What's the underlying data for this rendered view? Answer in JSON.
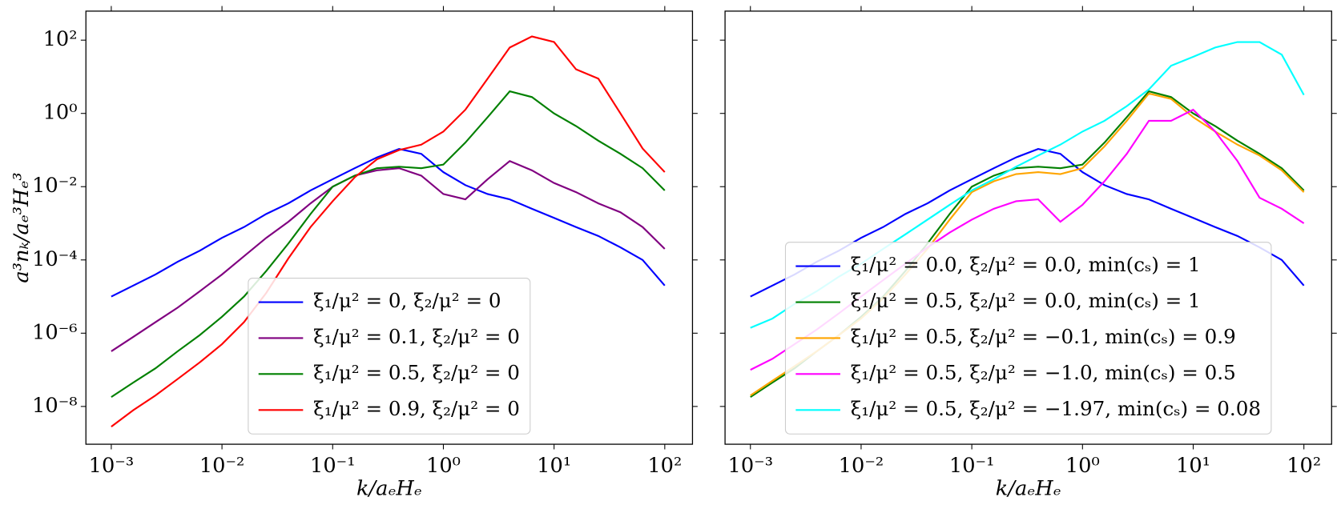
{
  "chart_data": [
    {
      "type": "line",
      "xscale": "log",
      "yscale": "log",
      "xlabel": "k/aₑHₑ",
      "ylabel": "a³nₖ/aₑ³Hₑ³",
      "legend": "lower center",
      "xlim": [
        0.00059,
        178
      ],
      "ylim": [
        9.3e-10,
        620
      ],
      "xticks": [
        {
          "value": 0.001,
          "label": "10⁻³"
        },
        {
          "value": 0.01,
          "label": "10⁻²"
        },
        {
          "value": 0.1,
          "label": "10⁻¹"
        },
        {
          "value": 1,
          "label": "10⁰"
        },
        {
          "value": 10,
          "label": "10¹"
        },
        {
          "value": 100,
          "label": "10²"
        }
      ],
      "yticks": [
        {
          "value": 1e-08,
          "label": "10⁻⁸"
        },
        {
          "value": 1e-06,
          "label": "10⁻⁶"
        },
        {
          "value": 0.0001,
          "label": "10⁻⁴"
        },
        {
          "value": 0.01,
          "label": "10⁻²"
        },
        {
          "value": 1,
          "label": "10⁰"
        },
        {
          "value": 100,
          "label": "10²"
        }
      ],
      "x": [
        0.001,
        0.00158,
        0.00251,
        0.00398,
        0.00631,
        0.01,
        0.0158,
        0.0251,
        0.0398,
        0.0631,
        0.1,
        0.158,
        0.251,
        0.398,
        0.631,
        1,
        1.58,
        2.51,
        3.98,
        6.31,
        10,
        15.8,
        25.1,
        39.8,
        63.1,
        100
      ],
      "series": [
        {
          "name": "ξ₁/μ² = 0, ξ₂/μ² = 0",
          "color": "#0000ff",
          "values": [
            1e-05,
            2e-05,
            4e-05,
            8.9e-05,
            0.00018,
            0.0004,
            0.00079,
            0.0018,
            0.0035,
            0.0079,
            0.016,
            0.032,
            0.063,
            0.107,
            0.079,
            0.025,
            0.011,
            0.0063,
            0.0045,
            0.0025,
            0.0014,
            0.00079,
            0.00045,
            0.00022,
            0.0001,
            2e-05
          ]
        },
        {
          "name": "ξ₁/μ² = 0.1, ξ₂/μ² = 0",
          "color": "#800080",
          "values": [
            3.2e-07,
            7.9e-07,
            2e-06,
            5e-06,
            1.4e-05,
            4e-05,
            0.000126,
            0.0004,
            0.0011,
            0.0035,
            0.01,
            0.02,
            0.028,
            0.032,
            0.02,
            0.0063,
            0.0045,
            0.016,
            0.05,
            0.028,
            0.0126,
            0.0071,
            0.0035,
            0.002,
            0.00079,
            0.0002
          ]
        },
        {
          "name": "ξ₁/μ² = 0.5, ξ₂/μ² = 0",
          "color": "#008000",
          "values": [
            1.8e-08,
            4.5e-08,
            1.1e-07,
            3.2e-07,
            8.9e-07,
            2.8e-06,
            1e-05,
            5e-05,
            0.00028,
            0.0018,
            0.01,
            0.02,
            0.032,
            0.035,
            0.032,
            0.04,
            0.16,
            0.79,
            4.0,
            2.8,
            1.0,
            0.45,
            0.18,
            0.079,
            0.032,
            0.0079
          ]
        },
        {
          "name": "ξ₁/μ² = 0.9, ξ₂/μ² = 0",
          "color": "#ff0000",
          "values": [
            2.8e-09,
            7.9e-09,
            2e-08,
            5.6e-08,
            1.6e-07,
            5e-07,
            2e-06,
            1.26e-05,
            0.00011,
            0.00079,
            0.004,
            0.018,
            0.056,
            0.1,
            0.14,
            0.32,
            1.26,
            8.9,
            63,
            126,
            89,
            16,
            8.9,
            1.0,
            0.11,
            0.025
          ]
        }
      ]
    },
    {
      "type": "line",
      "xscale": "log",
      "yscale": "log",
      "xlabel": "k/aₑHₑ",
      "legend": "lower center",
      "xlim": [
        0.00059,
        178
      ],
      "ylim": [
        9.3e-10,
        620
      ],
      "xticks": [
        {
          "value": 0.001,
          "label": "10⁻³"
        },
        {
          "value": 0.01,
          "label": "10⁻²"
        },
        {
          "value": 0.1,
          "label": "10⁻¹"
        },
        {
          "value": 1,
          "label": "10⁰"
        },
        {
          "value": 10,
          "label": "10¹"
        },
        {
          "value": 100,
          "label": "10²"
        }
      ],
      "yticks": [
        1e-08,
        1e-06,
        0.0001,
        0.01,
        1,
        100
      ],
      "x": [
        0.001,
        0.00158,
        0.00251,
        0.00398,
        0.00631,
        0.01,
        0.0158,
        0.0251,
        0.0398,
        0.0631,
        0.1,
        0.158,
        0.251,
        0.398,
        0.631,
        1,
        1.58,
        2.51,
        3.98,
        6.31,
        10,
        15.8,
        25.1,
        39.8,
        63.1,
        100
      ],
      "series": [
        {
          "name": "ξ₁/μ² = 0.0, ξ₂/μ² = 0.0, min(cₛ) = 1",
          "color": "#0000ff",
          "values": [
            1e-05,
            2e-05,
            4e-05,
            8.9e-05,
            0.00018,
            0.0004,
            0.00079,
            0.0018,
            0.0035,
            0.0079,
            0.016,
            0.032,
            0.063,
            0.107,
            0.079,
            0.025,
            0.011,
            0.0063,
            0.0045,
            0.0025,
            0.0014,
            0.00079,
            0.00045,
            0.00022,
            0.0001,
            2e-05
          ]
        },
        {
          "name": "ξ₁/μ² = 0.5, ξ₂/μ² = 0.0, min(cₛ) = 1",
          "color": "#008000",
          "values": [
            1.8e-08,
            4.5e-08,
            1.1e-07,
            3.2e-07,
            8.9e-07,
            2.8e-06,
            1e-05,
            5e-05,
            0.00028,
            0.0018,
            0.01,
            0.02,
            0.032,
            0.035,
            0.032,
            0.04,
            0.16,
            0.79,
            4.0,
            2.8,
            1.0,
            0.45,
            0.18,
            0.079,
            0.032,
            0.0079
          ]
        },
        {
          "name": "ξ₁/μ² = 0.5, ξ₂/μ² = −0.1, min(cₛ) = 0.9",
          "color": "#ffa500",
          "values": [
            2e-08,
            5e-08,
            1.26e-07,
            3.2e-07,
            8.9e-07,
            2.5e-06,
            8.9e-06,
            4e-05,
            0.0002,
            0.00126,
            0.0071,
            0.014,
            0.022,
            0.025,
            0.022,
            0.032,
            0.126,
            0.63,
            3.5,
            2.5,
            0.79,
            0.32,
            0.14,
            0.071,
            0.028,
            0.0071
          ]
        },
        {
          "name": "ξ₁/μ² = 0.5, ξ₂/μ² = −1.0, min(cₛ) = 0.5",
          "color": "#ff00ff",
          "values": [
            1e-07,
            2e-07,
            5e-07,
            1.26e-06,
            3.5e-06,
            1e-05,
            2.8e-05,
            7.9e-05,
            0.00022,
            0.00056,
            0.00126,
            0.0025,
            0.004,
            0.0045,
            0.0011,
            0.0032,
            0.014,
            0.079,
            0.63,
            0.63,
            1.26,
            0.32,
            0.05,
            0.005,
            0.0025,
            0.001
          ]
        },
        {
          "name": "ξ₁/μ² = 0.5, ξ₂/μ² = −1.97, min(cₛ) = 0.08",
          "color": "#00ffff",
          "values": [
            1.4e-06,
            2.5e-06,
            6.3e-06,
            1.4e-05,
            3.5e-05,
            7.9e-05,
            0.0002,
            0.0005,
            0.00126,
            0.0032,
            0.0079,
            0.016,
            0.035,
            0.071,
            0.14,
            0.32,
            0.63,
            1.58,
            4.5,
            20,
            35,
            63,
            89,
            89,
            40,
            3.2
          ]
        }
      ]
    }
  ]
}
